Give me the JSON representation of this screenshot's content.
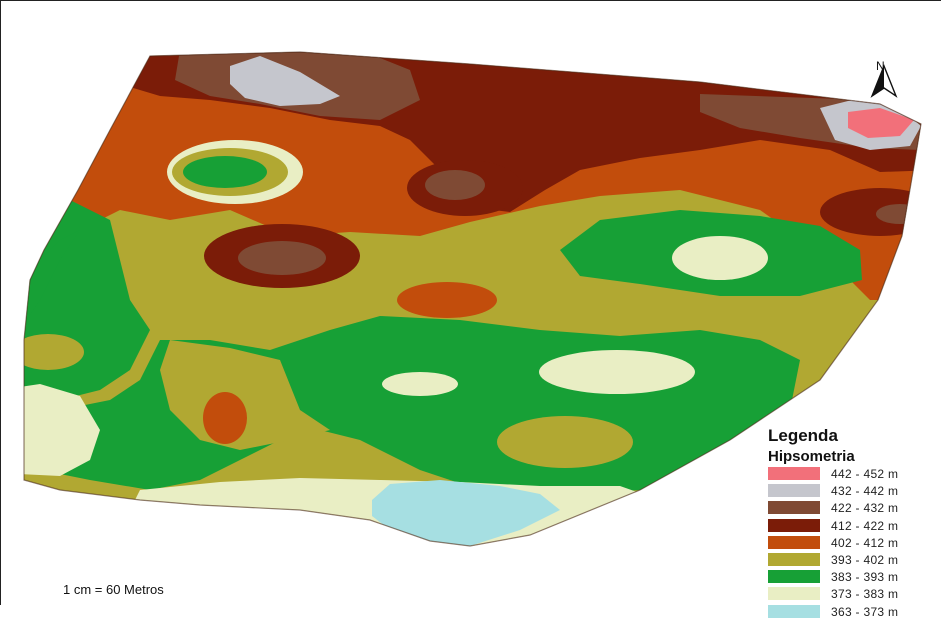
{
  "map": {
    "legend_title": "Legenda",
    "legend_subtitle": "Hipsometria",
    "scale_text": "1 cm = 60 Metros",
    "north_label": "N",
    "legend_items": [
      {
        "label": "442 - 452 m",
        "color": "#f2707a"
      },
      {
        "label": "432 - 442 m",
        "color": "#c5c6cd"
      },
      {
        "label": "422 - 432 m",
        "color": "#7f4a34"
      },
      {
        "label": "412 - 422 m",
        "color": "#7b1c08"
      },
      {
        "label": "402 - 412 m",
        "color": "#c24d0c"
      },
      {
        "label": "393 - 402 m",
        "color": "#b1a832"
      },
      {
        "label": "383 - 393 m",
        "color": "#17a036"
      },
      {
        "label": "373 - 383 m",
        "color": "#e9eec4"
      },
      {
        "label": "363 - 373 m",
        "color": "#a6dfe2"
      }
    ]
  }
}
